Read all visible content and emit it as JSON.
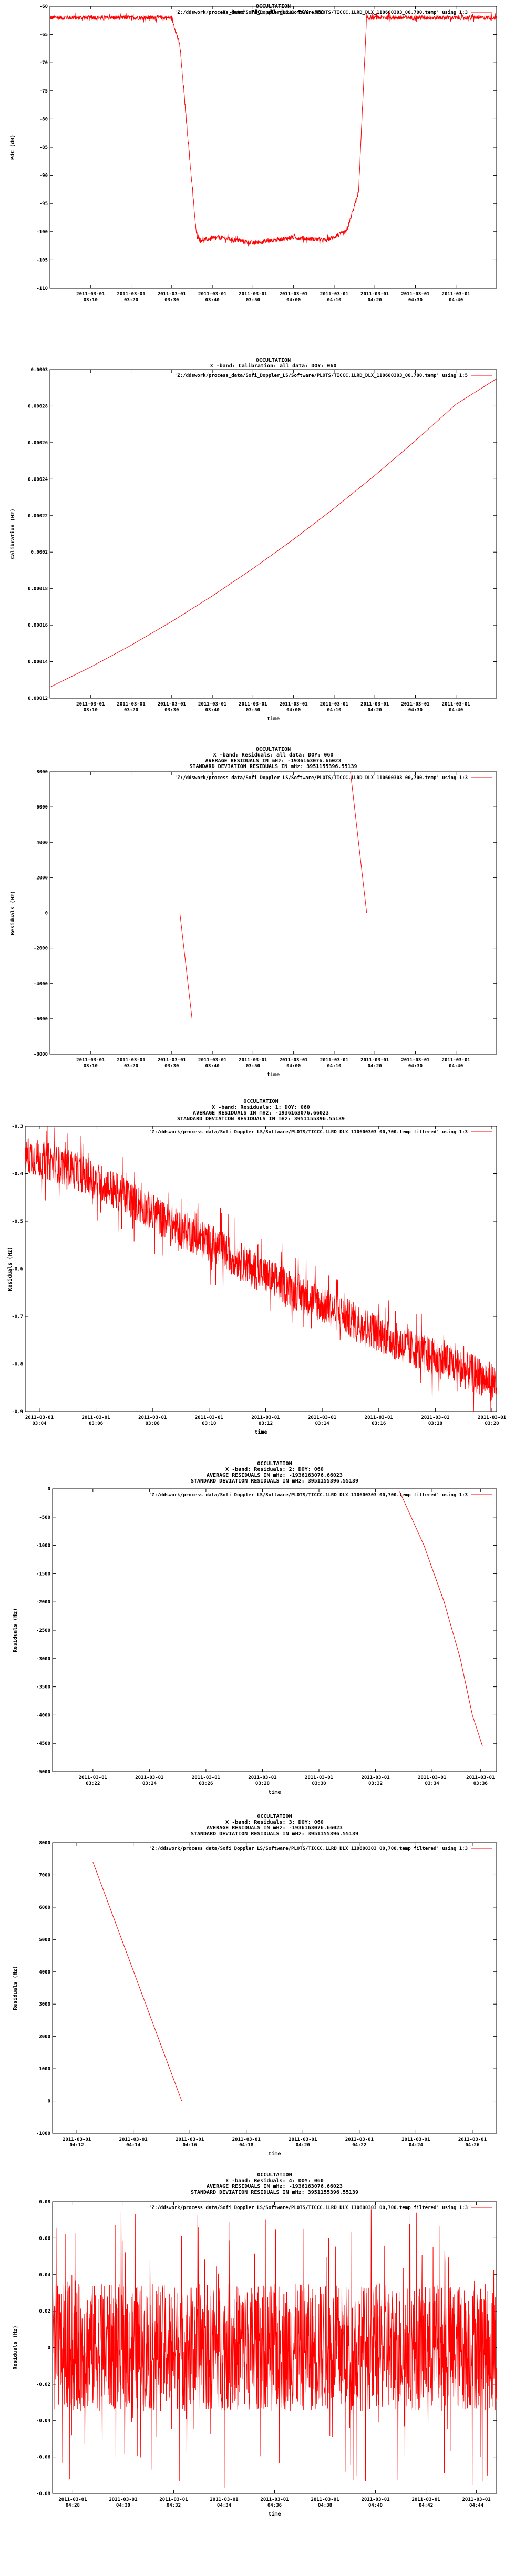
{
  "panels": [
    {
      "title_lines": [
        "OCCULTATION",
        "X -band: PdC: all data: DOY: 060"
      ],
      "legend": "'Z:/ddswork/process_data/Sofi_Doppler_LS/Software/PLOTS/TICCC.1LRD_DLX_110600303_00,700.temp' using 1:3",
      "ylabel": "PdC (dB)",
      "xlabel": "",
      "chart_data": {
        "type": "line",
        "title": "X -band: PdC: all data: DOY: 060",
        "xlabel": "",
        "ylabel": "PdC (dB)",
        "ylim": [
          -110,
          -60
        ],
        "yticks": [
          -60,
          -65,
          -70,
          -75,
          -80,
          -85,
          -90,
          -95,
          -100,
          -105,
          -110
        ],
        "xlim": [
          0,
          11
        ],
        "xtick_labels": [
          [
            "2011-03-01",
            "03:10"
          ],
          [
            "2011-03-01",
            "03:20"
          ],
          [
            "2011-03-01",
            "03:30"
          ],
          [
            "2011-03-01",
            "03:40"
          ],
          [
            "2011-03-01",
            "03:50"
          ],
          [
            "2011-03-01",
            "04:00"
          ],
          [
            "2011-03-01",
            "04:10"
          ],
          [
            "2011-03-01",
            "04:20"
          ],
          [
            "2011-03-01",
            "04:30"
          ],
          [
            "2011-03-01",
            "04:40"
          ]
        ],
        "xtick_pos": [
          1,
          2,
          3,
          4,
          5,
          6,
          7,
          8,
          9,
          10
        ],
        "series": [
          {
            "points": [
              [
                0,
                -62
              ],
              [
                3,
                -62
              ],
              [
                3.2,
                -67
              ],
              [
                3.6,
                -100
              ],
              [
                3.7,
                -101.5
              ],
              [
                4.2,
                -101
              ],
              [
                5,
                -102
              ],
              [
                6,
                -101
              ],
              [
                6.8,
                -101.5
              ],
              [
                7.3,
                -100
              ],
              [
                7.6,
                -93
              ],
              [
                7.8,
                -62
              ],
              [
                11,
                -62
              ]
            ],
            "noise": 0.4
          }
        ]
      }
    },
    {
      "title_lines": [
        "OCCULTATION",
        "X -band: Calibration: all data: DOY: 060"
      ],
      "legend": "'Z:/ddswork/process_data/Sofi_Doppler_LS/Software/PLOTS/TICCC.1LRD_DLX_110600303_00,700.temp' using 1:5",
      "ylabel": "Calibration (Hz)",
      "xlabel": "time",
      "chart_data": {
        "type": "line",
        "title": "X -band: Calibration: all data: DOY: 060",
        "xlabel": "time",
        "ylabel": "Calibration (Hz)",
        "ylim": [
          0.00012,
          0.0003
        ],
        "yticks": [
          0.00012,
          0.00014,
          0.00016,
          0.00018,
          0.0002,
          0.00022,
          0.00024,
          0.00026,
          0.00028,
          0.0003
        ],
        "ytick_labels": [
          "0.00012",
          "0.00014",
          "0.00016",
          "0.00018",
          "0.0002",
          "0.00022",
          "0.00024",
          "0.00026",
          "0.00028",
          "0.0003"
        ],
        "xlim": [
          0,
          11
        ],
        "xtick_labels": [
          [
            "2011-03-01",
            "03:10"
          ],
          [
            "2011-03-01",
            "03:20"
          ],
          [
            "2011-03-01",
            "03:30"
          ],
          [
            "2011-03-01",
            "03:40"
          ],
          [
            "2011-03-01",
            "03:50"
          ],
          [
            "2011-03-01",
            "04:00"
          ],
          [
            "2011-03-01",
            "04:10"
          ],
          [
            "2011-03-01",
            "04:20"
          ],
          [
            "2011-03-01",
            "04:30"
          ],
          [
            "2011-03-01",
            "04:40"
          ]
        ],
        "xtick_pos": [
          1,
          2,
          3,
          4,
          5,
          6,
          7,
          8,
          9,
          10
        ],
        "series": [
          {
            "points": [
              [
                0,
                0.000126
              ],
              [
                1,
                0.000137
              ],
              [
                2,
                0.000149
              ],
              [
                3,
                0.000162
              ],
              [
                4,
                0.000176
              ],
              [
                5,
                0.000191
              ],
              [
                6,
                0.000207
              ],
              [
                7,
                0.000224
              ],
              [
                8,
                0.000242
              ],
              [
                9,
                0.000261
              ],
              [
                10,
                0.000281
              ],
              [
                11,
                0.000295
              ]
            ],
            "noise": 0
          }
        ]
      }
    },
    {
      "title_lines": [
        "OCCULTATION",
        "X -band: Residuals: all data: DOY: 060",
        "AVERAGE RESIDUALS IN mHz: -1936163076.66023",
        "STANDARD DEVIATION RESIDUALS IN mHz: 3951155396.55139"
      ],
      "legend": "'Z:/ddswork/process_data/Sofi_Doppler_LS/Software/PLOTS/TICCC.1LRD_DLX_110600303_00,700.temp' using 1:3",
      "ylabel": "Residuals (Hz)",
      "xlabel": "time",
      "chart_data": {
        "type": "line",
        "title": "X -band: Residuals: all data: DOY: 060",
        "xlabel": "time",
        "ylabel": "Residuals (Hz)",
        "ylim": [
          -8000,
          8000
        ],
        "yticks": [
          -8000,
          -6000,
          -4000,
          -2000,
          0,
          2000,
          4000,
          6000,
          8000
        ],
        "xlim": [
          0,
          11
        ],
        "xtick_labels": [
          [
            "2011-03-01",
            "03:10"
          ],
          [
            "2011-03-01",
            "03:20"
          ],
          [
            "2011-03-01",
            "03:30"
          ],
          [
            "2011-03-01",
            "03:40"
          ],
          [
            "2011-03-01",
            "03:50"
          ],
          [
            "2011-03-01",
            "04:00"
          ],
          [
            "2011-03-01",
            "04:10"
          ],
          [
            "2011-03-01",
            "04:20"
          ],
          [
            "2011-03-01",
            "04:30"
          ],
          [
            "2011-03-01",
            "04:40"
          ]
        ],
        "xtick_pos": [
          1,
          2,
          3,
          4,
          5,
          6,
          7,
          8,
          9,
          10
        ],
        "series": [
          {
            "segments": [
              [
                [
                  0,
                  0
                ],
                [
                  3.2,
                  0
                ],
                [
                  3.5,
                  -6000
                ]
              ],
              [
                [
                  7.4,
                  8000
                ],
                [
                  7.8,
                  0
                ],
                [
                  11,
                  0
                ]
              ]
            ],
            "noise": 0
          }
        ]
      }
    },
    {
      "title_lines": [
        "OCCULTATION",
        "X -band: Residuals: 1: DOY: 060",
        "AVERAGE RESIDUALS IN mHz: -1936163076.66023",
        "STANDARD DEVIATION RESIDUALS IN mHz: 3951155396.55139"
      ],
      "legend": "'Z:/ddswork/process_data/Sofi_Doppler_LS/Software/PLOTS/TICCC.1LRD_DLX_110600303_00,700.temp_filtered' using 1:3",
      "ylabel": "Residuals (Hz)",
      "xlabel": "time",
      "chart_data": {
        "type": "line",
        "title": "X -band: Residuals: 1: DOY: 060",
        "xlabel": "time",
        "ylabel": "Residuals (Hz)",
        "ylim": [
          -0.9,
          -0.3
        ],
        "yticks": [
          -0.9,
          -0.8,
          -0.7,
          -0.6,
          -0.5,
          -0.4,
          -0.3
        ],
        "xlim": [
          0,
          10
        ],
        "xtick_labels": [
          [
            "2011-03-01",
            "03:04"
          ],
          [
            "2011-03-01",
            "03:06"
          ],
          [
            "2011-03-01",
            "03:08"
          ],
          [
            "2011-03-01",
            "03:10"
          ],
          [
            "2011-03-01",
            "03:12"
          ],
          [
            "2011-03-01",
            "03:14"
          ],
          [
            "2011-03-01",
            "03:16"
          ],
          [
            "2011-03-01",
            "03:18"
          ],
          [
            "2011-03-01",
            "03:20"
          ]
        ],
        "xtick_pos": [
          0.3,
          1.5,
          2.7,
          3.9,
          5.1,
          6.3,
          7.5,
          8.7,
          9.9
        ],
        "series": [
          {
            "points": [
              [
                0,
                -0.36
              ],
              [
                1,
                -0.39
              ],
              [
                2,
                -0.44
              ],
              [
                3,
                -0.5
              ],
              [
                4,
                -0.55
              ],
              [
                5,
                -0.61
              ],
              [
                6,
                -0.66
              ],
              [
                7,
                -0.71
              ],
              [
                8,
                -0.76
              ],
              [
                9,
                -0.8
              ],
              [
                10,
                -0.84
              ]
            ],
            "noise": 0.04
          }
        ]
      }
    },
    {
      "title_lines": [
        "OCCULTATION",
        "X -band: Residuals: 2: DOY: 060",
        "AVERAGE RESIDUALS IN mHz: -1936163076.66023",
        "STANDARD DEVIATION RESIDUALS IN mHz: 3951155396.55139"
      ],
      "legend": "'Z:/ddswork/process_data/Sofi_Doppler_LS/Software/PLOTS/TICCC.1LRD_DLX_110600303_00,700.temp_filtered' using 1:3",
      "ylabel": "Residuals (Hz)",
      "xlabel": "time",
      "chart_data": {
        "type": "line",
        "title": "X -band: Residuals: 2: DOY: 060",
        "xlabel": "time",
        "ylabel": "Residuals (Hz)",
        "ylim": [
          -5000,
          0
        ],
        "yticks": [
          -5000,
          -4500,
          -4000,
          -3500,
          -3000,
          -2500,
          -2000,
          -1500,
          -1000,
          -500,
          0
        ],
        "xlim": [
          0,
          11
        ],
        "xtick_labels": [
          [
            "2011-03-01",
            "03:22"
          ],
          [
            "2011-03-01",
            "03:24"
          ],
          [
            "2011-03-01",
            "03:26"
          ],
          [
            "2011-03-01",
            "03:28"
          ],
          [
            "2011-03-01",
            "03:30"
          ],
          [
            "2011-03-01",
            "03:32"
          ],
          [
            "2011-03-01",
            "03:34"
          ],
          [
            "2011-03-01",
            "03:36"
          ]
        ],
        "xtick_pos": [
          1,
          2.4,
          3.8,
          5.2,
          6.6,
          8,
          9.4,
          10.6
        ],
        "series": [
          {
            "points": [
              [
                8.6,
                -50
              ],
              [
                9.2,
                -1000
              ],
              [
                9.7,
                -2000
              ],
              [
                10.1,
                -3000
              ],
              [
                10.4,
                -4000
              ],
              [
                10.65,
                -4550
              ]
            ],
            "noise": 0
          }
        ]
      }
    },
    {
      "title_lines": [
        "OCCULTATION",
        "X -band: Residuals: 3: DOY: 060",
        "AVERAGE RESIDUALS IN mHz: -1936163076.66023",
        "STANDARD DEVIATION RESIDUALS IN mHz: 3951155396.55139"
      ],
      "legend": "'Z:/ddswork/process_data/Sofi_Doppler_LS/Software/PLOTS/TICCC.1LRD_DLX_110600303_00,700.temp_filtered' using 1:3",
      "ylabel": "Residuals (Hz)",
      "xlabel": "time",
      "chart_data": {
        "type": "line",
        "title": "X -band: Residuals: 3: DOY: 060",
        "xlabel": "time",
        "ylabel": "Residuals (Hz)",
        "ylim": [
          -1000,
          8000
        ],
        "yticks": [
          -1000,
          0,
          1000,
          2000,
          3000,
          4000,
          5000,
          6000,
          7000,
          8000
        ],
        "xlim": [
          0,
          11
        ],
        "xtick_labels": [
          [
            "2011-03-01",
            "04:12"
          ],
          [
            "2011-03-01",
            "04:14"
          ],
          [
            "2011-03-01",
            "04:16"
          ],
          [
            "2011-03-01",
            "04:18"
          ],
          [
            "2011-03-01",
            "04:20"
          ],
          [
            "2011-03-01",
            "04:22"
          ],
          [
            "2011-03-01",
            "04:24"
          ],
          [
            "2011-03-01",
            "04:26"
          ]
        ],
        "xtick_pos": [
          0.6,
          2,
          3.4,
          4.8,
          6.2,
          7.6,
          9,
          10.4
        ],
        "series": [
          {
            "points": [
              [
                1,
                7400
              ],
              [
                3.2,
                0
              ],
              [
                11,
                0
              ]
            ],
            "noise": 0
          }
        ]
      }
    },
    {
      "title_lines": [
        "OCCULTATION",
        "X -band: Residuals: 4: DOY: 060",
        "AVERAGE RESIDUALS IN mHz: -1936163076.66023",
        "STANDARD DEVIATION RESIDUALS IN mHz: 3951155396.55139"
      ],
      "legend": "'Z:/ddswork/process_data/Sofi_Doppler_LS/Software/PLOTS/TICCC.1LRD_DLX_110600303_00,700.temp_filtered' using 1:3",
      "ylabel": "Residuals (Hz)",
      "xlabel": "time",
      "chart_data": {
        "type": "line",
        "title": "X -band: Residuals: 4: DOY: 060",
        "xlabel": "time",
        "ylabel": "Residuals (Hz)",
        "ylim": [
          -0.08,
          0.08
        ],
        "yticks": [
          -0.08,
          -0.06,
          -0.04,
          -0.02,
          0,
          0.02,
          0.04,
          0.06,
          0.08
        ],
        "xlim": [
          0,
          11
        ],
        "xtick_labels": [
          [
            "2011-03-01",
            "04:28"
          ],
          [
            "2011-03-01",
            "04:30"
          ],
          [
            "2011-03-01",
            "04:32"
          ],
          [
            "2011-03-01",
            "04:34"
          ],
          [
            "2011-03-01",
            "04:36"
          ],
          [
            "2011-03-01",
            "04:38"
          ],
          [
            "2011-03-01",
            "04:40"
          ],
          [
            "2011-03-01",
            "04:42"
          ],
          [
            "2011-03-01",
            "04:44"
          ]
        ],
        "xtick_pos": [
          0.5,
          1.75,
          3,
          4.25,
          5.5,
          6.75,
          8,
          9.25,
          10.5
        ],
        "series": [
          {
            "points": [
              [
                0,
                0
              ],
              [
                11,
                0
              ]
            ],
            "noise": 0.035
          }
        ]
      }
    }
  ],
  "colors": {
    "series": "#ff0000",
    "axes": "#000000",
    "background": "#ffffff"
  }
}
